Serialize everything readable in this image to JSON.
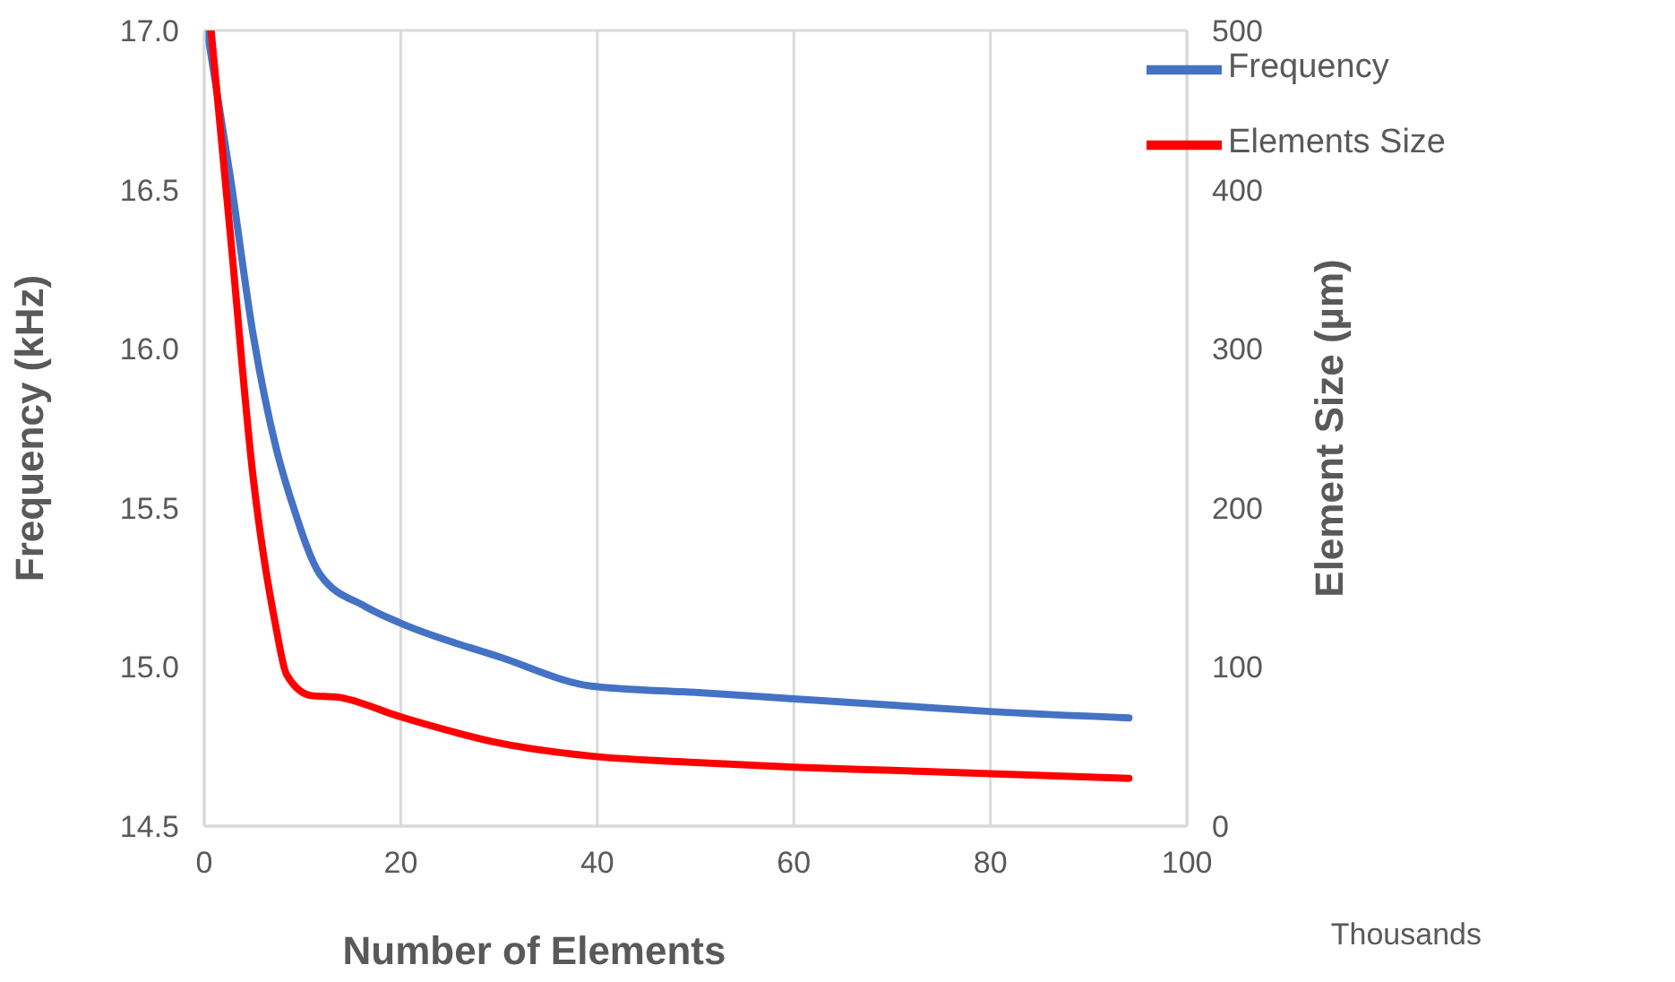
{
  "chart_data": {
    "type": "line",
    "xlabel": "Number of Elements",
    "ylabel": "Frequency (kHz)",
    "y2label": "Element Size (µm)",
    "annotations": [
      "Thousands"
    ],
    "series": [
      {
        "name": "Frequency",
        "color": "#4472c4",
        "x": [
          0.3,
          2.7,
          5.0,
          7.3,
          9.1,
          11.8,
          16.4,
          19.8,
          30.2,
          39.4,
          50,
          60,
          70,
          80,
          94.1
        ],
        "values": [
          17.0,
          16.53,
          16.04,
          15.69,
          15.5,
          15.29,
          15.19,
          15.14,
          15.03,
          14.94,
          14.92,
          14.9,
          14.88,
          14.86,
          14.84
        ]
      },
      {
        "name": "Elements Size",
        "color": "#ff0000",
        "axis": "y2",
        "x": [
          0.7,
          2.7,
          5.0,
          7.3,
          8.4,
          10.9,
          13.6,
          19.8,
          30.2,
          39.4,
          50,
          60,
          70,
          80,
          94.1
        ],
        "values": [
          500,
          369,
          218,
          125,
          95,
          82,
          81,
          69,
          52,
          44,
          40,
          37,
          35,
          33,
          30
        ]
      }
    ],
    "xlim": [
      0,
      100
    ],
    "xticks": [
      0,
      20,
      40,
      60,
      80,
      100
    ],
    "ylim": [
      14.5,
      17.0
    ],
    "yticks": [
      {
        "value": 14.5,
        "label": "14.5"
      },
      {
        "value": 15,
        "label": "15.0"
      },
      {
        "value": 15.5,
        "label": "15.5"
      },
      {
        "value": 16,
        "label": "16.0"
      },
      {
        "value": 16.5,
        "label": "16.5"
      },
      {
        "value": 17,
        "label": "17.0"
      }
    ],
    "y2lim": [
      0,
      500
    ],
    "y2ticks": [
      0,
      100,
      200,
      300,
      400,
      500
    ],
    "grid": true,
    "legend": "top right",
    "marker": "none",
    "line_style": "solid"
  }
}
